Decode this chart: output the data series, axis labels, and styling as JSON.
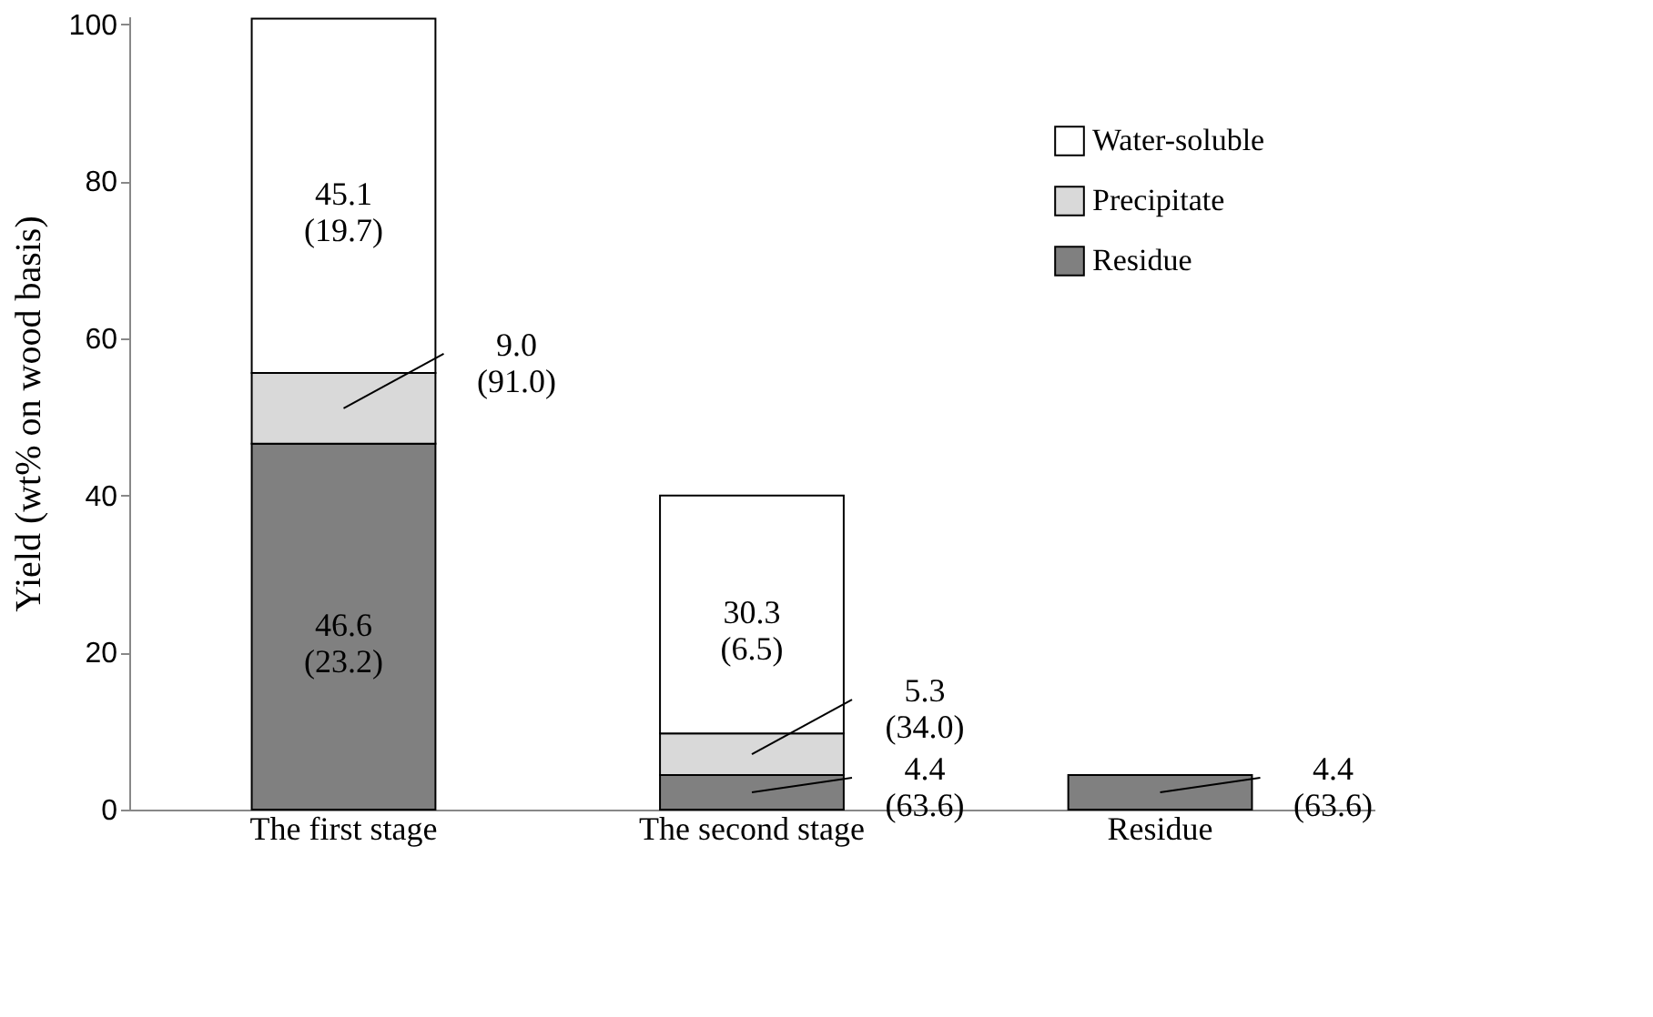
{
  "chart_data": {
    "type": "bar",
    "stacked": true,
    "ylabel": "Yield (wt% on wood basis)",
    "categories": [
      "The first stage",
      "The second stage",
      "Residue"
    ],
    "series": [
      {
        "name": "Residue",
        "color": "#808080",
        "values": [
          46.6,
          4.4,
          4.4
        ],
        "value_labels": [
          "46.6\n(23.2)",
          "4.4\n(63.6)",
          "4.4\n(63.6)"
        ]
      },
      {
        "name": "Precipitate",
        "color": "#d9d9d9",
        "values": [
          9.0,
          5.3,
          null
        ],
        "value_labels": [
          "9.0\n(91.0)",
          "5.3\n(34.0)",
          null
        ]
      },
      {
        "name": "Water-soluble",
        "color": "#ffffff",
        "values": [
          45.1,
          30.3,
          null
        ],
        "value_labels": [
          "45.1\n(19.7)",
          "30.3\n(6.5)",
          null
        ]
      }
    ],
    "ylim": [
      0,
      101
    ],
    "yticks": [
      0,
      20,
      40,
      60,
      80,
      100
    ],
    "grid": false,
    "legend": "top right"
  }
}
